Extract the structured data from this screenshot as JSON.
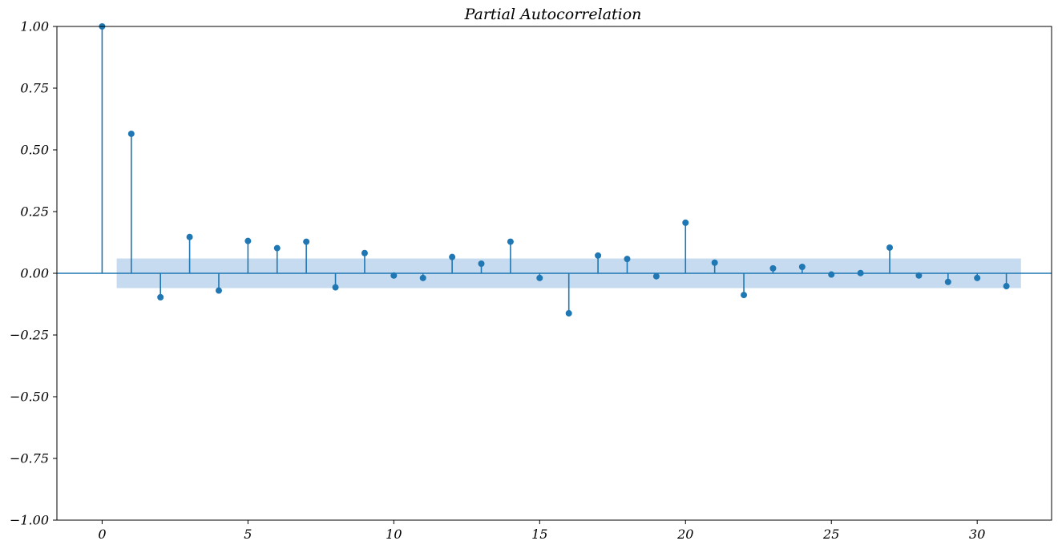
{
  "chart_data": {
    "type": "stem",
    "title": "Partial Autocorrelation",
    "xlabel": "",
    "ylabel": "",
    "xlim": [
      -1.55,
      32.55
    ],
    "ylim": [
      -1.0,
      1.0
    ],
    "x_ticks": [
      0,
      5,
      10,
      15,
      20,
      25,
      30
    ],
    "y_ticks": [
      -1.0,
      -0.75,
      -0.5,
      -0.25,
      0.0,
      0.25,
      0.5,
      0.75,
      1.0
    ],
    "x_tick_labels": [
      "0",
      "5",
      "10",
      "15",
      "20",
      "25",
      "30"
    ],
    "y_tick_labels": [
      "−1.00",
      "−0.75",
      "−0.50",
      "−0.25",
      "0.00",
      "0.25",
      "0.50",
      "0.75",
      "1.00"
    ],
    "grid": false,
    "confidence_band": {
      "lower": -0.06,
      "upper": 0.06,
      "x_start": 0.5,
      "x_end": 31.5
    },
    "x": [
      0,
      1,
      2,
      3,
      4,
      5,
      6,
      7,
      8,
      9,
      10,
      11,
      12,
      13,
      14,
      15,
      16,
      17,
      18,
      19,
      20,
      21,
      22,
      23,
      24,
      25,
      26,
      27,
      28,
      29,
      30,
      31
    ],
    "values": [
      1.0,
      0.565,
      -0.097,
      0.147,
      -0.07,
      0.131,
      0.102,
      0.128,
      -0.057,
      0.082,
      -0.009,
      -0.019,
      0.066,
      0.039,
      0.128,
      -0.019,
      -0.162,
      0.072,
      0.058,
      -0.012,
      0.205,
      0.043,
      -0.088,
      0.02,
      0.026,
      -0.005,
      0.001,
      0.104,
      -0.009,
      -0.035,
      -0.019,
      -0.052
    ],
    "colors": {
      "stem": "#1f77b4",
      "band": "#c6dbef",
      "axis": "#000000"
    }
  }
}
